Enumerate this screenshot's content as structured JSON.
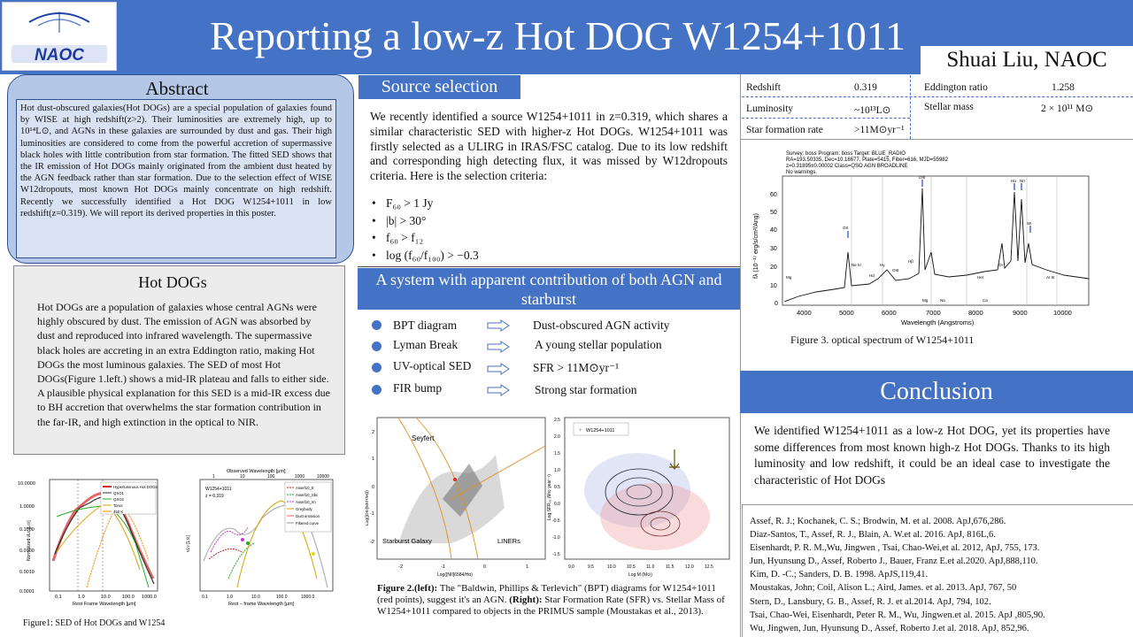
{
  "header": {
    "logo_text": "NAOC",
    "title": "Reporting a low-z Hot DOG W1254+1011",
    "author": "Shuai Liu, NAOC",
    "bg_color": "#4472c4"
  },
  "abstract": {
    "title": "Abstract",
    "text": "Hot dust-obscured galaxies(Hot DOGs) are a special population of galaxies found by WISE at high redshift(z>2). Their luminosities are extremely high, up to 10¹⁴L⊙, and AGNs in these galaxies are surrounded by dust and gas. Their high luminosities are considered to come from the powerful accretion of supermassive black holes with little contribution from star formation. The fitted SED shows that the IR emission of Hot DOGs mainly originated from the ambient dust heated by the AGN feedback rather than star formation. Due to the selection effect of WISE W12dropouts, most known Hot DOGs mainly concentrate on high redshift. Recently we successfully identified a Hot DOG W1254+1011 in low redshift(z=0.319). We will report its derived properties in this poster."
  },
  "hot_dogs": {
    "title": "Hot DOGs",
    "text": "Hot DOGs are a population of galaxies whose central AGNs were highly obscured by dust. The emission of AGN was absorbed by dust and reproduced into infrared wavelength. The supermassive black holes are accreting in an extra Eddington ratio, making Hot DOGs the most luminous galaxies. The SED of most Hot DOGs(Figure 1.left.) shows a mid-IR plateau and falls to either side. A plausible physical explanation for this SED is a mid-IR excess due to BH accretion that overwhelms the star formation contribution in the far-IR, and high extinction in the optical to NIR.",
    "fig1_caption": "Figure1: SED of Hot DOGs and W1254",
    "fig1_left": {
      "xlabel": "Rest Frame Wavelength [μm]",
      "ylabel": "Normalized νLν [L⊙]",
      "yticks": [
        "10.0000",
        "1.0000",
        "0.1000",
        "0.0100",
        "0.0010",
        "0.0001"
      ],
      "xticks": [
        "0.1",
        "1.0",
        "10.0",
        "100.0",
        "1000.0"
      ],
      "legend": [
        "Hyperluminous Hot DOGs",
        "QSO1",
        "QSO2",
        "Torus",
        "450 K"
      ]
    },
    "fig1_right": {
      "title": "Observed Wavelength [μm]",
      "top_ticks": [
        "1",
        "10",
        "100",
        "1000",
        "10000"
      ],
      "xlabel": "Rest – frame Wavelength [μm]",
      "ylabel": "νLν [L⊙]",
      "annotation": [
        "W1254+1011",
        "z = 0.319"
      ],
      "legend": [
        "Assef10_E",
        "Assef10_Sbc",
        "Assef10_Im",
        "Greybody",
        "Dust emission",
        "Filtered curve"
      ],
      "xticks": [
        "0.1",
        "1.0",
        "10.0",
        "100.0",
        "1000.0"
      ]
    }
  },
  "source_selection": {
    "tag": "Source selection",
    "text": "We recently identified a source W1254+1011 in z=0.319, which shares a similar characteristic SED with higher-z Hot DOGs. W1254+1011 was firstly selected as a ULIRG in IRAS/FSC catalog. Due to its low redshift and corresponding high detecting flux, it was missed by W12dropouts criteria. Here is the selection criteria:",
    "criteria": [
      "F₆₀ > 1 Jy",
      "|b| > 30°",
      "f₆₀ > f₁₂",
      "log (f₆₀/f₁₀₀) > −0.3"
    ]
  },
  "system": {
    "title": "A system with apparent contribution of both AGN and starburst",
    "rows": [
      {
        "left": "BPT diagram",
        "right": "Dust-obscured AGN activity"
      },
      {
        "left": "Lyman Break",
        "right": "A young stellar population"
      },
      {
        "left": "UV-optical SED",
        "right": "SFR > 11M⊙yr⁻¹"
      },
      {
        "left": "FIR bump",
        "right": "Strong star formation"
      }
    ]
  },
  "fig2": {
    "bpt_labels": [
      "Seyfert",
      "Starburst Galaxy",
      "LINERs"
    ],
    "bpt_xlabel": "Log([NII]6584/Hα)",
    "bpt_ylabel": "Log([OIII]5007/Hβ)",
    "bpt_xticks": [
      "-2",
      "-1",
      "0",
      "1"
    ],
    "bpt_yticks": [
      "2",
      "1",
      "0",
      "-1",
      "-2"
    ],
    "sfr_legend": "W1254+1011",
    "sfr_xlabel": "Log M (M⊙)",
    "sfr_ylabel": "Log SFR₀ᵥ (M⊙ year⁻¹)",
    "sfr_xticks": [
      "9.0",
      "9.5",
      "10.0",
      "10.5",
      "11.0",
      "11.5",
      "12.0",
      "12.5"
    ],
    "sfr_yticks": [
      "2.5",
      "2.0",
      "1.5",
      "1.0",
      "0.5",
      "0.0",
      "-0.5",
      "-1.0",
      "-1.5"
    ],
    "caption_bold_1": "Figure 2.(left):",
    "caption_1": " The \"Baldwin, Phillips & Terlevich\" (BPT) diagrams for W1254+1011 (red points), suggest it's an AGN. ",
    "caption_bold_2": "(Right):",
    "caption_2": " Star Formation Rate (SFR) vs. Stellar Mass of W1254+1011 compared to objects in the PRIMUS sample (Moustakas et al., 2013)."
  },
  "properties": {
    "rows": [
      {
        "k1": "Redshift",
        "v1": "0.319",
        "k2": "Eddington ratio",
        "v2": "1.258"
      },
      {
        "k1": "Luminosity",
        "v1": "~10¹³L⊙",
        "k2": "Stellar mass",
        "v2": "2 × 10¹¹ M⊙"
      },
      {
        "k1": "Star formation rate",
        "v1": ">11M⊙yr⁻¹",
        "k2": "",
        "v2": ""
      }
    ]
  },
  "spectrum": {
    "header_lines": [
      "Survey: boss Program: boss Target: BLUE_RADIO",
      "RA=193.50335, Dec=10.18677, Plate=5415, Fiber=616, MJD=55982",
      "z=0.31895±0.00002 Class=QSO AGN BROADLINE",
      "No warnings."
    ],
    "xlabel": "Wavelength (Angstroms)",
    "ylabel": "fλ (10⁻¹⁷ erg/s/cm²/Ang)",
    "xticks": [
      "4000",
      "5000",
      "6000",
      "7000",
      "8000",
      "9000",
      "10000"
    ],
    "yticks": [
      "60",
      "50",
      "40",
      "30",
      "20",
      "10",
      "0"
    ],
    "lines": [
      "Mg",
      "OII",
      "Ne III",
      "Hd",
      "Hγ",
      "OIII",
      "Hβ",
      "OIII",
      "HeI",
      "OI",
      "Hα",
      "NII",
      "SII",
      "Ar III",
      "Mg",
      "Na",
      "Ca"
    ],
    "caption": "Figure 3. optical spectrum of W1254+1011"
  },
  "conclusion": {
    "title": "Conclusion",
    "text": "We identified W1254+1011 as a low-z Hot DOG, yet its properties have some differences from most known high-z Hot DOGs. Thanks to its high luminosity and low redshift, it could be an ideal case to investigate the characteristic of Hot DOGs"
  },
  "references": [
    "Assef, R. J.; Kochanek, C. S.; Brodwin, M. et al. 2008. ApJ,676,286.",
    "Diaz-Santos, T., Assef, R. J., Blain, A. W.et al. 2016. ApJ, 816L,6.",
    "Eisenhardt, P. R. M.,Wu, Jingwen , Tsai, Chao-Wei,et al. 2012, ApJ, 755, 173.",
    "Jun, Hyunsung D., Assef, Roberto J., Bauer, Franz E.et al.2020. ApJ,888,110.",
    "Kim, D. -C.; Sanders, D. B. 1998. ApJS,119,41.",
    "Moustakas, John; Coil, Alison L.; Aird, James. et al. 2013. ApJ, 767, 50",
    "Stern, D., Lansbury, G. B., Assef, R. J. et al.2014. ApJ, 794, 102.",
    "Tsai, Chao-Wei, Eisenhardt, Peter R. M., Wu, Jingwen.et al. 2015. ApJ ,805,90.",
    "Wu, Jingwen, Jun, Hyunsung D., Assef, Roberto J.et al. 2018. ApJ, 852,96."
  ]
}
